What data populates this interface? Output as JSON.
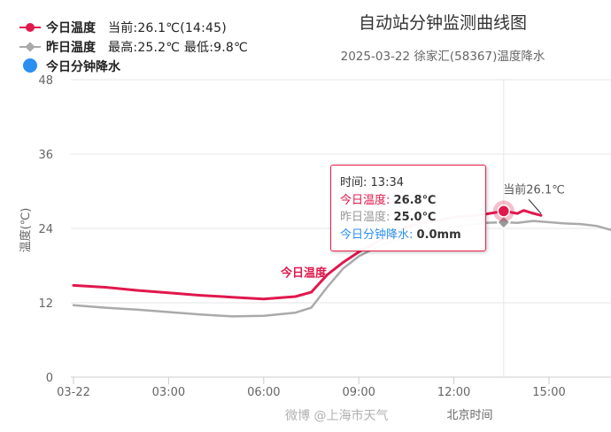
{
  "legend": [
    {
      "name": "今日温度",
      "extra": "当前:26.1℃(14:45)",
      "color": "#e0184c",
      "icon": "line-dot"
    },
    {
      "name": "昨日温度",
      "extra": "最高:25.2℃ 最低:9.8℃",
      "color": "#aaaaaa",
      "icon": "line-diamond"
    },
    {
      "name": "今日分钟降水",
      "extra": "",
      "color": "#2b8ff1",
      "icon": "big-dot"
    }
  ],
  "title": "自动站分钟监测曲线图",
  "subtitle": "2025-03-22 徐家汇(58367)温度降水",
  "tooltip": {
    "time_label": "时间",
    "time": "13:34",
    "rows": [
      {
        "label": "今日温度",
        "value": "26.8℃",
        "color": "#e0184c"
      },
      {
        "label": "昨日温度",
        "value": "25.0℃",
        "color": "#999999"
      },
      {
        "label": "今日分钟降水",
        "value": "0.0mm",
        "color": "#2b8ff1"
      }
    ]
  },
  "watermark": "微博 @上海市天气",
  "chart_data": {
    "type": "line",
    "xlabel": "北京时间",
    "ylabel": "温度(℃)",
    "ylim": [
      0,
      48
    ],
    "yticks": [
      0,
      12,
      24,
      36,
      48
    ],
    "xlim_hours": [
      0,
      17.2
    ],
    "xtick_hours": [
      0,
      3,
      6,
      9,
      12,
      15
    ],
    "xtick_labels": [
      "03-22",
      "03:00",
      "06:00",
      "09:00",
      "12:00",
      "15:00"
    ],
    "grid": true,
    "series": [
      {
        "name": "今日温度",
        "color": "#e0184c",
        "points": [
          [
            0,
            14.8
          ],
          [
            1,
            14.5
          ],
          [
            2,
            14.0
          ],
          [
            3,
            13.6
          ],
          [
            4,
            13.2
          ],
          [
            5,
            12.9
          ],
          [
            6,
            12.6
          ],
          [
            7,
            13.0
          ],
          [
            7.5,
            13.7
          ],
          [
            8,
            16.5
          ],
          [
            8.5,
            18.5
          ],
          [
            9,
            20.2
          ],
          [
            9.5,
            21.6
          ],
          [
            10,
            23.0
          ],
          [
            10.5,
            24.2
          ],
          [
            11,
            24.9
          ],
          [
            11.5,
            25.3
          ],
          [
            12,
            25.8
          ],
          [
            12.5,
            26.0
          ],
          [
            13,
            26.3
          ],
          [
            13.34,
            26.6
          ],
          [
            13.57,
            26.8
          ],
          [
            13.8,
            26.6
          ],
          [
            14,
            26.4
          ],
          [
            14.2,
            26.9
          ],
          [
            14.45,
            26.5
          ],
          [
            14.75,
            26.1
          ]
        ],
        "highlight": {
          "x": 13.57,
          "y": 26.8
        },
        "label": "今日温度",
        "current_label": "当前26.1℃"
      },
      {
        "name": "昨日温度",
        "color": "#aaaaaa",
        "points": [
          [
            0,
            11.6
          ],
          [
            1,
            11.2
          ],
          [
            2,
            10.9
          ],
          [
            3,
            10.5
          ],
          [
            4,
            10.1
          ],
          [
            5,
            9.8
          ],
          [
            6,
            9.9
          ],
          [
            7,
            10.4
          ],
          [
            7.5,
            11.2
          ],
          [
            8,
            14.5
          ],
          [
            8.5,
            17.5
          ],
          [
            9,
            19.5
          ],
          [
            9.5,
            20.8
          ],
          [
            10,
            21.8
          ],
          [
            10.5,
            22.5
          ],
          [
            11,
            23.2
          ],
          [
            11.5,
            23.8
          ],
          [
            12,
            24.2
          ],
          [
            12.5,
            24.6
          ],
          [
            13,
            24.9
          ],
          [
            13.57,
            25.0
          ],
          [
            14,
            24.9
          ],
          [
            14.5,
            25.2
          ],
          [
            15,
            25.0
          ],
          [
            15.5,
            24.8
          ],
          [
            16,
            24.7
          ],
          [
            16.5,
            24.4
          ],
          [
            17.2,
            23.4
          ]
        ],
        "highlight": {
          "x": 13.57,
          "y": 25.0
        }
      },
      {
        "name": "今日分钟降水",
        "color": "#2b8ff1",
        "points": []
      }
    ]
  }
}
